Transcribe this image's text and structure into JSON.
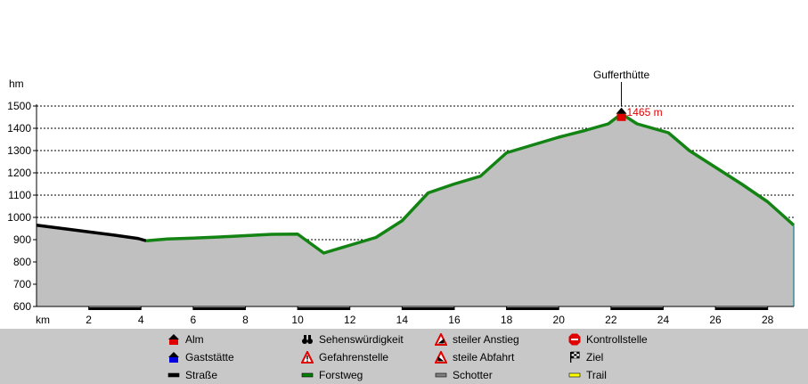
{
  "chart_data": {
    "type": "area",
    "ylabel": "hm",
    "xlabel": "km",
    "ylim": [
      600,
      1500
    ],
    "xlim": [
      0,
      29
    ],
    "y_ticks": [
      600,
      700,
      800,
      900,
      1000,
      1100,
      1200,
      1300,
      1400,
      1500
    ],
    "x_ticks": [
      2,
      4,
      6,
      8,
      10,
      12,
      14,
      16,
      18,
      20,
      22,
      24,
      26,
      28
    ],
    "grid": "horizontal-dashed",
    "profile": [
      {
        "x": 0,
        "y": 965
      },
      {
        "x": 1,
        "y": 950
      },
      {
        "x": 2,
        "y": 935
      },
      {
        "x": 3,
        "y": 920
      },
      {
        "x": 3.9,
        "y": 905
      },
      {
        "x": 4.2,
        "y": 895
      },
      {
        "x": 5,
        "y": 903
      },
      {
        "x": 6,
        "y": 907
      },
      {
        "x": 7,
        "y": 912
      },
      {
        "x": 8,
        "y": 918
      },
      {
        "x": 9,
        "y": 924
      },
      {
        "x": 10,
        "y": 925
      },
      {
        "x": 11,
        "y": 840
      },
      {
        "x": 12,
        "y": 875
      },
      {
        "x": 13,
        "y": 910
      },
      {
        "x": 14,
        "y": 985
      },
      {
        "x": 15,
        "y": 1110
      },
      {
        "x": 16,
        "y": 1150
      },
      {
        "x": 17,
        "y": 1185
      },
      {
        "x": 18,
        "y": 1290
      },
      {
        "x": 19,
        "y": 1325
      },
      {
        "x": 20,
        "y": 1360
      },
      {
        "x": 21,
        "y": 1390
      },
      {
        "x": 21.9,
        "y": 1420
      },
      {
        "x": 22.4,
        "y": 1465
      },
      {
        "x": 23,
        "y": 1420
      },
      {
        "x": 24.2,
        "y": 1380
      },
      {
        "x": 25,
        "y": 1300
      },
      {
        "x": 26,
        "y": 1225
      },
      {
        "x": 27,
        "y": 1150
      },
      {
        "x": 28,
        "y": 1070
      },
      {
        "x": 29,
        "y": 965
      }
    ],
    "segments": [
      {
        "surface": "Straße",
        "from": 0,
        "to": 4.2
      },
      {
        "surface": "Forstweg",
        "from": 4.2,
        "to": 29
      }
    ],
    "annotations": [
      {
        "label": "Gufferthütte",
        "x": 22.4,
        "y": 1465,
        "value_label": "1465 m",
        "type": "Alm"
      }
    ]
  },
  "legend": [
    {
      "name": "Alm",
      "icon": "alm-icon",
      "color": "#e00000"
    },
    {
      "name": "Gaststätte",
      "icon": "gaststaette-icon",
      "color": "#0000e0"
    },
    {
      "name": "Straße",
      "icon": "strasse-swatch",
      "color": "#000000"
    },
    {
      "name": "Sehenswürdigkeit",
      "icon": "binoculars-icon",
      "color": "#000000"
    },
    {
      "name": "Gefahrenstelle",
      "icon": "warning-icon",
      "color": "#e00000"
    },
    {
      "name": "Forstweg",
      "icon": "forstweg-swatch",
      "color": "#008000"
    },
    {
      "name": "steiler Anstieg",
      "icon": "steep-ascent-icon",
      "color": "#e00000"
    },
    {
      "name": "steile Abfahrt",
      "icon": "steep-descent-icon",
      "color": "#e00000"
    },
    {
      "name": "Schotter",
      "icon": "schotter-swatch",
      "color": "#808080"
    },
    {
      "name": "Kontrollstelle",
      "icon": "stop-icon",
      "color": "#e00000"
    },
    {
      "name": "Ziel",
      "icon": "finish-flag-icon",
      "color": "#000000"
    },
    {
      "name": "Trail",
      "icon": "trail-swatch",
      "color": "#ffff00"
    }
  ],
  "colors": {
    "area": "#c0c0c0",
    "forstweg": "#138413",
    "strasse": "#000000",
    "marker": "#e00000",
    "value_label": "#e00000"
  }
}
